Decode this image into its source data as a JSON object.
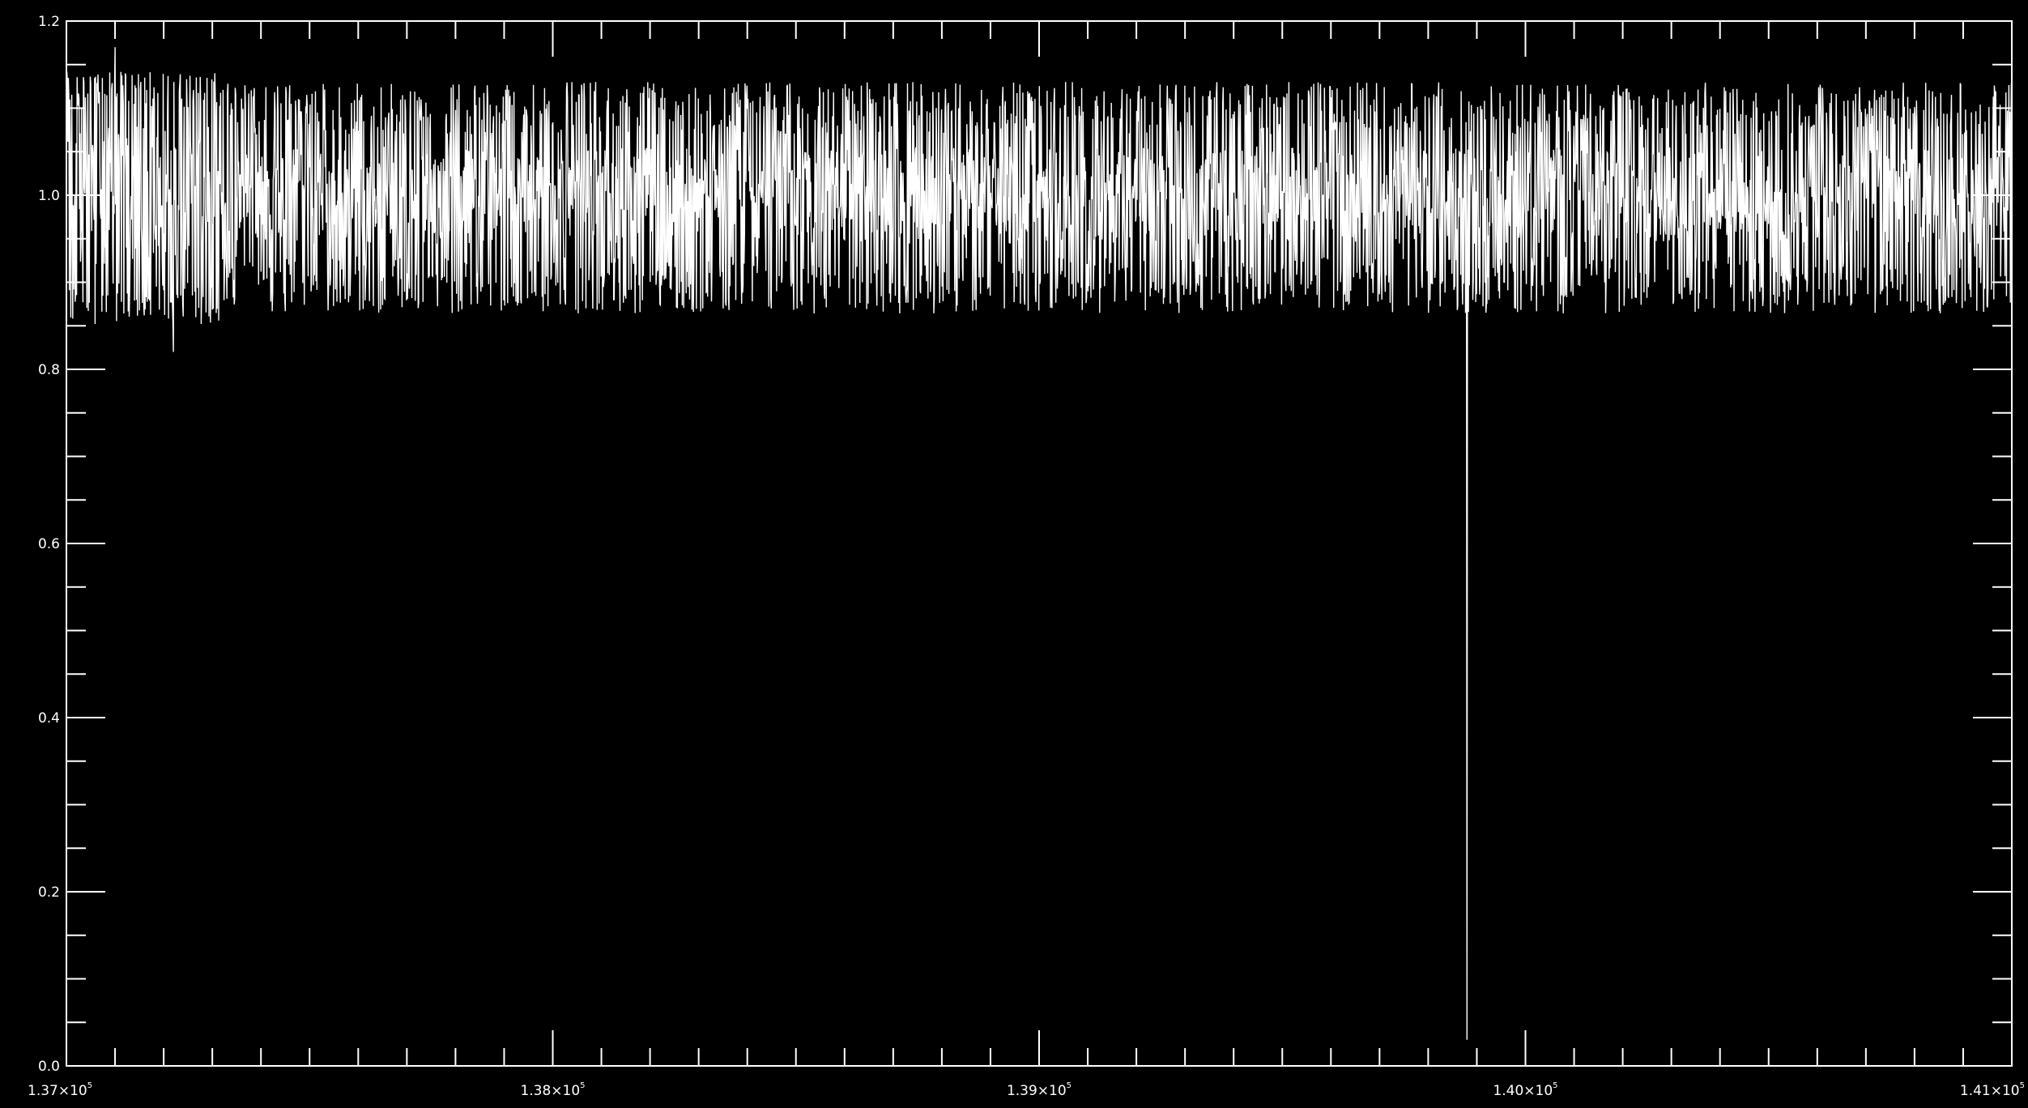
{
  "chart_data": {
    "type": "line",
    "title": "",
    "xlabel": "",
    "ylabel": "",
    "xlim": [
      137000,
      141000
    ],
    "ylim": [
      0.0,
      1.2
    ],
    "grid": false,
    "legend": "none",
    "colors": {
      "background": "#000000",
      "line": "#ffffff",
      "axes": "#ffffff"
    },
    "x_tick_labels": [
      {
        "value": 137000,
        "mantissa": "1.37",
        "exp": "5"
      },
      {
        "value": 138000,
        "mantissa": "1.38",
        "exp": "5"
      },
      {
        "value": 139000,
        "mantissa": "1.39",
        "exp": "5"
      },
      {
        "value": 140000,
        "mantissa": "1.40",
        "exp": "5"
      },
      {
        "value": 141000,
        "mantissa": "1.41",
        "exp": "5"
      }
    ],
    "x_minor_step": 100,
    "y_tick_labels": [
      {
        "value": 0.0,
        "label": "0.0"
      },
      {
        "value": 0.2,
        "label": "0.2"
      },
      {
        "value": 0.4,
        "label": "0.4"
      },
      {
        "value": 0.6,
        "label": "0.6"
      },
      {
        "value": 0.8,
        "label": "0.8"
      },
      {
        "value": 1.0,
        "label": "1.0"
      },
      {
        "value": 1.2,
        "label": "1.2"
      }
    ],
    "y_minor_step": 0.05,
    "series": [
      {
        "x_start": 137000,
        "x_end": 141000,
        "n_samples": 4000,
        "baseline_y": 1.0,
        "band_low_y": 0.93,
        "band_high_y": 1.07,
        "spike_min_y": 0.82,
        "spike_max_y": 1.17,
        "features": [
          {
            "x": 137100,
            "y": 1.17
          },
          {
            "x": 137220,
            "y": 0.82
          },
          {
            "x": 139880,
            "y": 0.03
          }
        ]
      }
    ]
  }
}
